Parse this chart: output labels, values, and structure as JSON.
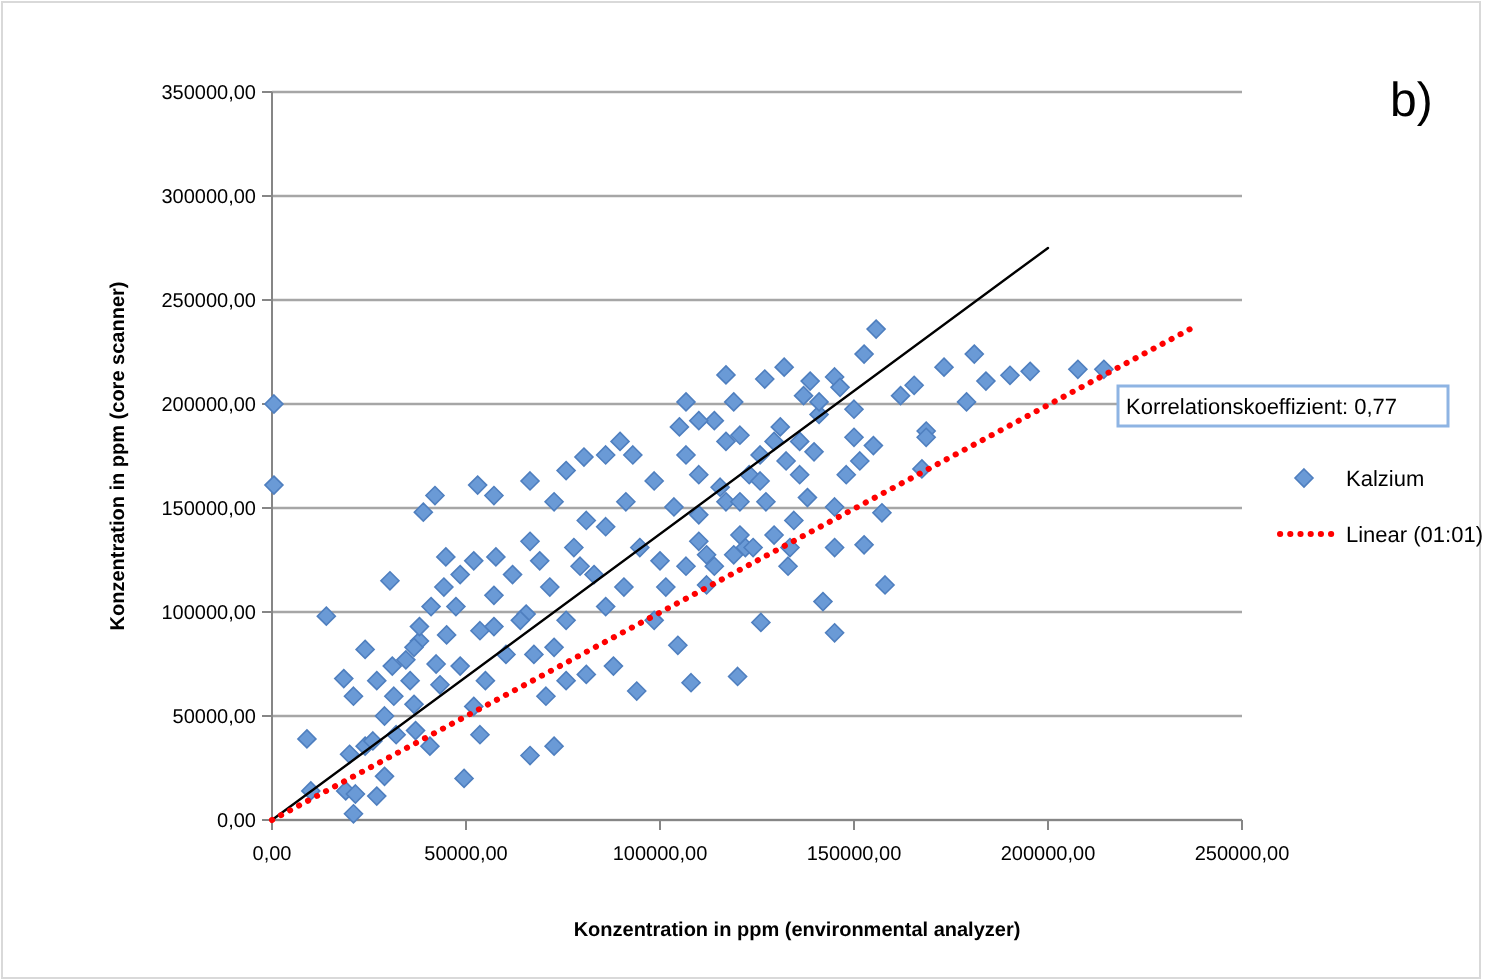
{
  "chart_data": {
    "type": "scatter",
    "title": "b)",
    "xlabel": "Konzentration in ppm (environmental analyzer)",
    "ylabel": "Konzentration in ppm (core scanner)",
    "annotations": [
      "Korrelationskoeffizient: 0,77"
    ],
    "xlim": [
      0,
      250000
    ],
    "ylim": [
      0,
      350000
    ],
    "xticks": [
      {
        "value": 0,
        "label": "0,00"
      },
      {
        "value": 50000,
        "label": "50000,00"
      },
      {
        "value": 100000,
        "label": "100000,00"
      },
      {
        "value": 150000,
        "label": "150000,00"
      },
      {
        "value": 200000,
        "label": "200000,00"
      },
      {
        "value": 250000,
        "label": "250000,00"
      }
    ],
    "yticks": [
      {
        "value": 0,
        "label": "0,00"
      },
      {
        "value": 50000,
        "label": "50000,00"
      },
      {
        "value": 100000,
        "label": "100000,00"
      },
      {
        "value": 150000,
        "label": "150000,00"
      },
      {
        "value": 200000,
        "label": "200000,00"
      },
      {
        "value": 250000,
        "label": "250000,00"
      },
      {
        "value": 300000,
        "label": "300000,00"
      },
      {
        "value": 350000,
        "label": "350000,00"
      }
    ],
    "grid": "y",
    "legend": "right",
    "series": [
      {
        "name": "Kalzium",
        "marker": "diamond",
        "color": "#6a9ad6",
        "x": [
          500,
          500,
          14000,
          9000,
          21000,
          49500,
          66500,
          72700,
          24000,
          30400,
          39000,
          42000,
          53000,
          117000,
          27000,
          19000,
          10000,
          94000,
          108000,
          120000,
          104600,
          155700,
          152600,
          181000,
          207700,
          214400,
          195400,
          190200,
          184000,
          179000,
          173200,
          168600,
          168600,
          167500,
          157200,
          152600,
          145000,
          158000,
          142000,
          145000,
          126000,
          112000,
          133000,
          132000,
          127000,
          138700,
          145000,
          150000,
          162000,
          165500,
          141000,
          150000,
          155000,
          151500,
          148000,
          139700,
          138000,
          145000,
          134500,
          129400,
          133500,
          122000,
          119000,
          21000,
          18500,
          20000,
          24000,
          29000,
          32000,
          27000,
          31000,
          34500,
          31400,
          36600,
          40700,
          37000,
          29000,
          43300,
          48500,
          38000,
          41000,
          44300,
          44800,
          52000,
          47400,
          53600,
          52000,
          53600,
          55000,
          60300,
          57200,
          57700,
          57200,
          66500,
          67500,
          70600,
          75800,
          72700,
          65500,
          71600,
          69000,
          66500,
          72700,
          75800,
          80400,
          77800,
          83000,
          86000,
          81000,
          88000,
          89700,
          86000,
          93000,
          98500,
          91200,
          86000,
          94800,
          90700,
          100000,
          101500,
          98500,
          105000,
          106700,
          114000,
          106700,
          117000,
          110000,
          103600,
          117000,
          110000,
          120600,
          114000,
          106700,
          123000,
          124000,
          26000,
          21500,
          38000,
          35600,
          48500,
          62000,
          64000,
          75800,
          81000,
          79400,
          45000,
          57200,
          36600,
          42300,
          110000,
          119000,
          120600,
          115500,
          110000,
          120600,
          112000,
          125800,
          129400,
          132500,
          136000,
          127300,
          131000,
          136000,
          125800,
          141000,
          146400,
          137000
        ],
        "values": [
          200000,
          161000,
          98000,
          39000,
          3000,
          20000,
          31000,
          35500,
          82000,
          115000,
          148000,
          156000,
          161000,
          214000,
          11500,
          14000,
          14000,
          62000,
          66000,
          69000,
          84000,
          236000,
          224000,
          224000,
          216700,
          216700,
          215700,
          213800,
          211000,
          201000,
          217700,
          187000,
          184000,
          168800,
          147700,
          132300,
          131000,
          113000,
          105000,
          90000,
          95000,
          113000,
          122000,
          217700,
          212000,
          211000,
          213000,
          197500,
          204000,
          209000,
          195000,
          184000,
          180000,
          172600,
          166000,
          177000,
          155000,
          150500,
          144000,
          137000,
          131000,
          131000,
          127500,
          59500,
          68000,
          31600,
          35500,
          21000,
          41000,
          67000,
          74000,
          77000,
          59500,
          55600,
          35500,
          43000,
          50000,
          65000,
          74000,
          86000,
          102600,
          112000,
          126500,
          124600,
          102600,
          91000,
          54600,
          41000,
          67000,
          79600,
          108000,
          126500,
          156000,
          163000,
          79600,
          59500,
          67000,
          83000,
          99000,
          112000,
          124600,
          134000,
          153000,
          168000,
          174500,
          131000,
          118000,
          102600,
          70000,
          74000,
          182000,
          175500,
          175500,
          163000,
          153000,
          141000,
          131000,
          112000,
          124600,
          112000,
          96000,
          189000,
          201000,
          192000,
          175500,
          182000,
          166000,
          150500,
          153000,
          134000,
          137000,
          122000,
          122000,
          166000,
          131000,
          38000,
          12500,
          93000,
          67000,
          118000,
          118000,
          96000,
          96000,
          144000,
          122000,
          89000,
          93000,
          83000,
          75000,
          192000,
          201000,
          185000,
          160000,
          146700,
          153000,
          127500,
          163000,
          182000,
          172600,
          166000,
          153000,
          189000,
          182000,
          175500,
          201000,
          208000,
          204000
        ]
      },
      {
        "type": "line",
        "color": "#000000",
        "line_style": "solid",
        "x": [
          0,
          200000
        ],
        "values": [
          0,
          275000
        ]
      },
      {
        "name": "Linear (01:01)",
        "type": "line",
        "color": "#ff0000",
        "line_style": "dotted",
        "x": [
          0,
          236600
        ],
        "values": [
          0,
          236000
        ]
      }
    ]
  }
}
